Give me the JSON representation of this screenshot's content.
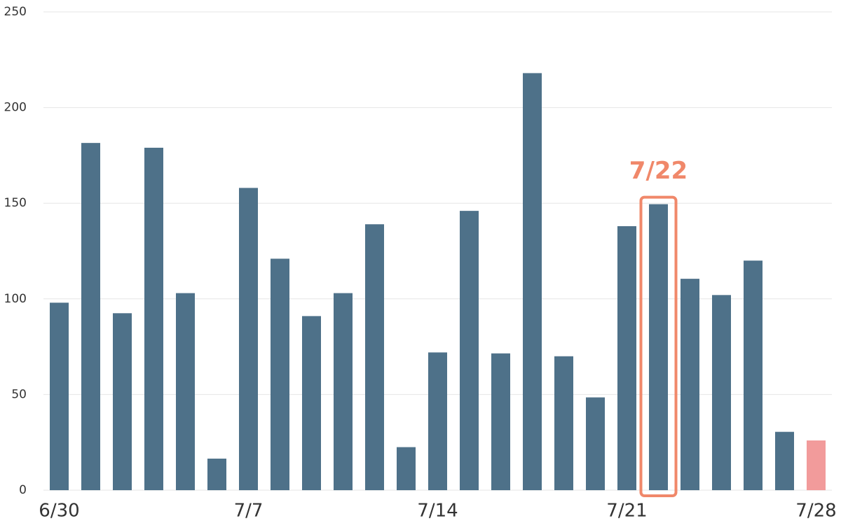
{
  "chart_data": {
    "type": "bar",
    "categories": [
      "6/30",
      null,
      null,
      null,
      null,
      null,
      "7/7",
      null,
      null,
      null,
      null,
      null,
      "7/14",
      null,
      null,
      null,
      null,
      null,
      "7/21",
      null,
      null,
      null,
      null,
      null,
      "7/28"
    ],
    "values": [
      98,
      181.5,
      92.5,
      179,
      103,
      16.5,
      158,
      121,
      91,
      103,
      139,
      22.5,
      72,
      146,
      71.5,
      218,
      70,
      48.5,
      138,
      149.5,
      110.5,
      102,
      120,
      30.5,
      26
    ],
    "colors": [
      "#4e7189",
      "#4e7189",
      "#4e7189",
      "#4e7189",
      "#4e7189",
      "#4e7189",
      "#4e7189",
      "#4e7189",
      "#4e7189",
      "#4e7189",
      "#4e7189",
      "#4e7189",
      "#4e7189",
      "#4e7189",
      "#4e7189",
      "#4e7189",
      "#4e7189",
      "#4e7189",
      "#4e7189",
      "#4e7189",
      "#4e7189",
      "#4e7189",
      "#4e7189",
      "#4e7189",
      "#f29b9b"
    ],
    "ylim": [
      0,
      250
    ],
    "yticks": [
      0,
      50,
      100,
      150,
      200,
      250
    ],
    "grid": true,
    "annotation": {
      "text": "7/22",
      "category_index": 19,
      "color": "#f0886a"
    }
  }
}
